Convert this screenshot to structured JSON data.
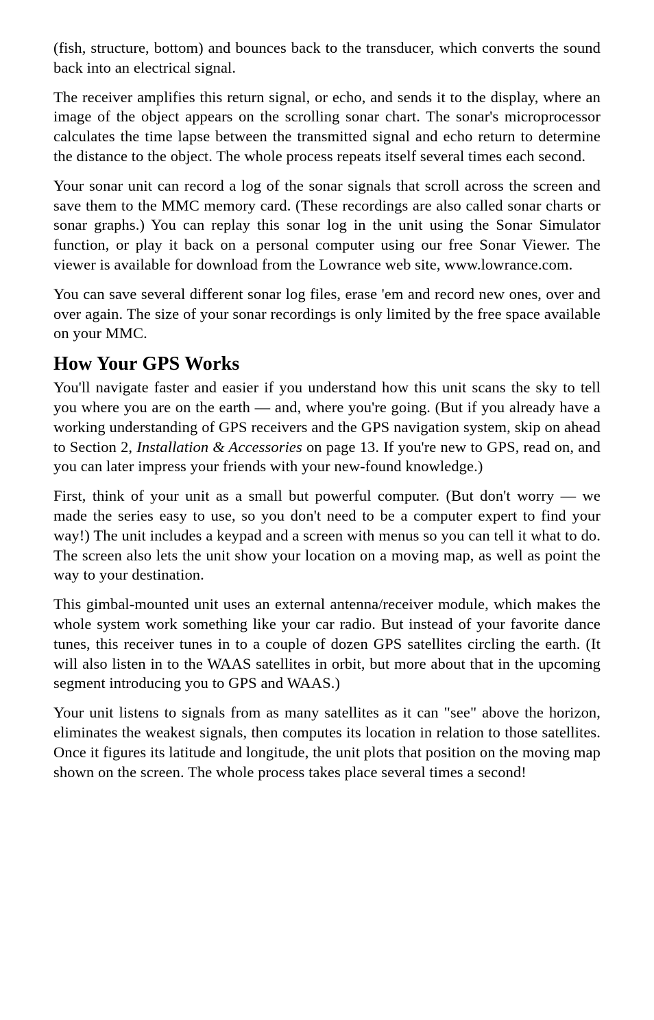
{
  "paragraphs": {
    "p1": "(fish, structure, bottom) and bounces back to the transducer, which converts the sound back into an electrical signal.",
    "p2": "The receiver amplifies this return signal, or echo, and sends it to the display, where an image of the object appears on the scrolling sonar chart. The sonar's microprocessor calculates the time lapse between the transmitted signal and echo return to determine the distance to the object. The whole process repeats itself several times each second.",
    "p3": "Your sonar unit can record a log of the sonar signals that scroll across the screen and save them to the MMC memory card. (These recordings are also called sonar charts or sonar graphs.) You can replay this sonar log in the unit using the Sonar Simulator function, or play it back on a personal computer using our free Sonar Viewer. The viewer is available for download from the Lowrance web site, www.lowrance.com.",
    "p4": "You can save several different sonar log files, erase 'em and record new ones, over and over again. The size of your sonar recordings is only limited by the free space available on your MMC.",
    "h1": "How Your GPS Works",
    "p5_a": "You'll navigate faster and easier if you understand how this unit scans the sky to tell you where you are on the earth — and, where you're going. (But if you already have a working understanding of GPS receivers and the GPS navigation system, skip on ahead to Section 2, ",
    "p5_i": "Installation & Accessories",
    "p5_b": " on page 13. If you're new to GPS, read on, and you can later impress your friends with your new-found knowledge.)",
    "p6": "First, think of your unit as a small but powerful computer. (But don't worry — we made the series easy to use, so you don't need to be a computer expert to find your way!) The unit includes a keypad and a screen with menus so you can tell it what to do. The screen also lets the unit show your location on a moving map, as well as point the way to your destination.",
    "p7": "This gimbal-mounted unit uses an external antenna/receiver module, which makes the whole system work something like your car radio. But instead of your favorite dance tunes, this receiver tunes in to a couple of dozen GPS satellites circling the earth. (It will also listen in to the WAAS satellites in orbit, but more about that in the upcoming segment introducing you to GPS and WAAS.)",
    "p8": "Your unit listens to signals from as many satellites as it can \"see\" above the horizon, eliminates the weakest signals, then computes its location in relation to those satellites. Once it figures its latitude and longitude, the unit plots that position on the moving map shown on the screen. The whole process takes place several times a second!"
  }
}
